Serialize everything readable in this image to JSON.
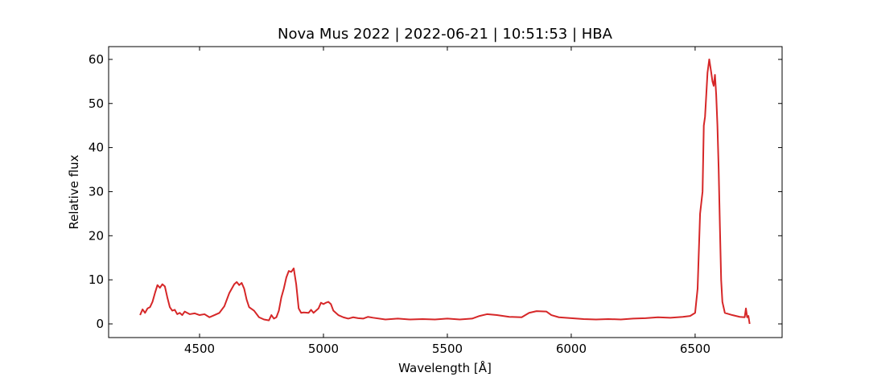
{
  "chart_data": {
    "type": "line",
    "title": "Nova Mus 2022 | 2022-06-21 | 10:51:53 | HBA",
    "xlabel": "Wavelength [Å]",
    "ylabel": "Relative flux",
    "x": [
      4260,
      4270,
      4280,
      4290,
      4300,
      4310,
      4320,
      4330,
      4340,
      4350,
      4360,
      4370,
      4380,
      4390,
      4400,
      4410,
      4420,
      4430,
      4440,
      4460,
      4480,
      4500,
      4520,
      4540,
      4560,
      4580,
      4600,
      4620,
      4640,
      4650,
      4660,
      4670,
      4680,
      4690,
      4700,
      4720,
      4740,
      4760,
      4780,
      4790,
      4800,
      4810,
      4820,
      4830,
      4840,
      4850,
      4860,
      4870,
      4880,
      4890,
      4900,
      4910,
      4920,
      4940,
      4950,
      4960,
      4980,
      4990,
      5000,
      5010,
      5020,
      5030,
      5040,
      5060,
      5080,
      5100,
      5120,
      5140,
      5160,
      5180,
      5200,
      5250,
      5300,
      5350,
      5400,
      5450,
      5500,
      5550,
      5600,
      5630,
      5660,
      5700,
      5750,
      5800,
      5830,
      5860,
      5900,
      5920,
      5950,
      6000,
      6050,
      6100,
      6150,
      6200,
      6250,
      6300,
      6350,
      6400,
      6450,
      6480,
      6500,
      6510,
      6520,
      6530,
      6535,
      6540,
      6545,
      6550,
      6557,
      6565,
      6570,
      6575,
      6580,
      6585,
      6590,
      6595,
      6600,
      6605,
      6610,
      6620,
      6650,
      6680,
      6700,
      6705,
      6710,
      6715,
      6720
    ],
    "series": [
      {
        "name": "HBA",
        "color": "#d62728",
        "values": [
          2,
          3.3,
          2.5,
          3.5,
          3.8,
          5,
          7,
          8.8,
          8.2,
          9,
          8.5,
          6,
          3.8,
          3,
          3.2,
          2.2,
          2.5,
          2,
          2.8,
          2.2,
          2.4,
          2,
          2.2,
          1.5,
          2,
          2.5,
          4,
          7,
          9,
          9.5,
          8.8,
          9.3,
          8,
          5.5,
          3.8,
          3,
          1.5,
          1,
          0.8,
          2,
          1.2,
          1.5,
          3,
          6,
          8,
          10.5,
          12,
          11.8,
          12.6,
          9,
          3.5,
          2.5,
          2.6,
          2.5,
          3.2,
          2.5,
          3.5,
          4.8,
          4.5,
          4.8,
          5,
          4.5,
          3,
          2,
          1.5,
          1.2,
          1.5,
          1.3,
          1.2,
          1.6,
          1.4,
          1,
          1.2,
          1,
          1.1,
          1,
          1.2,
          1,
          1.2,
          1.8,
          2.2,
          2,
          1.6,
          1.5,
          2.5,
          2.9,
          2.8,
          2,
          1.5,
          1.3,
          1.1,
          1,
          1.1,
          1,
          1.2,
          1.3,
          1.5,
          1.4,
          1.6,
          1.8,
          2.5,
          8,
          25,
          30,
          45,
          47,
          52,
          57,
          60,
          57,
          55,
          54,
          56.5,
          52,
          45,
          35,
          22,
          10,
          5,
          2.5,
          2,
          1.6,
          1.5,
          3.5,
          1.5,
          1.8,
          0
        ]
      }
    ],
    "xlim": [
      4133,
      6851
    ],
    "xticks": [
      4500,
      5000,
      5500,
      6000,
      6500
    ],
    "ylim": [
      -3.1,
      62.9
    ],
    "yticks": [
      0,
      10,
      20,
      30,
      40,
      50,
      60
    ]
  }
}
